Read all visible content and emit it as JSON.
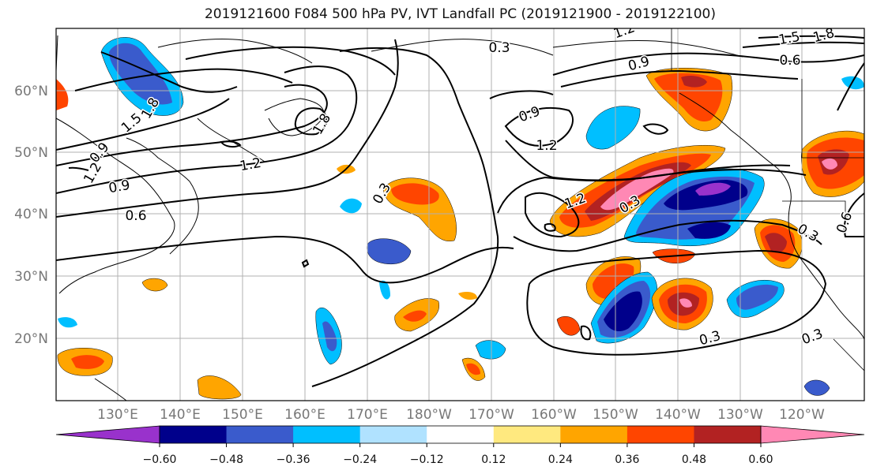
{
  "title": "2019121600 F084 500 hPa PV, IVT Landfall PC (2019121900 - 2019122100)",
  "lat_ticks": [
    "60°N",
    "50°N",
    "40°N",
    "30°N",
    "20°N"
  ],
  "lon_ticks": [
    "130°E",
    "140°E",
    "150°E",
    "160°E",
    "170°E",
    "180°W",
    "170°W",
    "160°W",
    "150°W",
    "140°W",
    "130°W",
    "120°W"
  ],
  "colorbar": {
    "levels": [
      "−0.60",
      "−0.48",
      "−0.36",
      "−0.24",
      "−0.12",
      "0.12",
      "0.24",
      "0.36",
      "0.48",
      "0.60"
    ],
    "colors": [
      "#9932cc",
      "#00008b",
      "#3a5bcc",
      "#00bfff",
      "#b0e2ff",
      "#ffffff",
      "#ffe97f",
      "#ffa500",
      "#ff4500",
      "#b22222",
      "#ff88b4"
    ]
  },
  "contour_labels": [
    "0.3",
    "0.3",
    "0.3",
    "0.3",
    "0.3",
    "0.6",
    "0.6",
    "0.6",
    "0.9",
    "0.9",
    "0.9",
    "0.9",
    "1.2",
    "1.2",
    "1.2",
    "1.2",
    "1.5",
    "1.8",
    "1.8",
    "1.5",
    "1.8",
    "1.2",
    "0.3"
  ]
}
